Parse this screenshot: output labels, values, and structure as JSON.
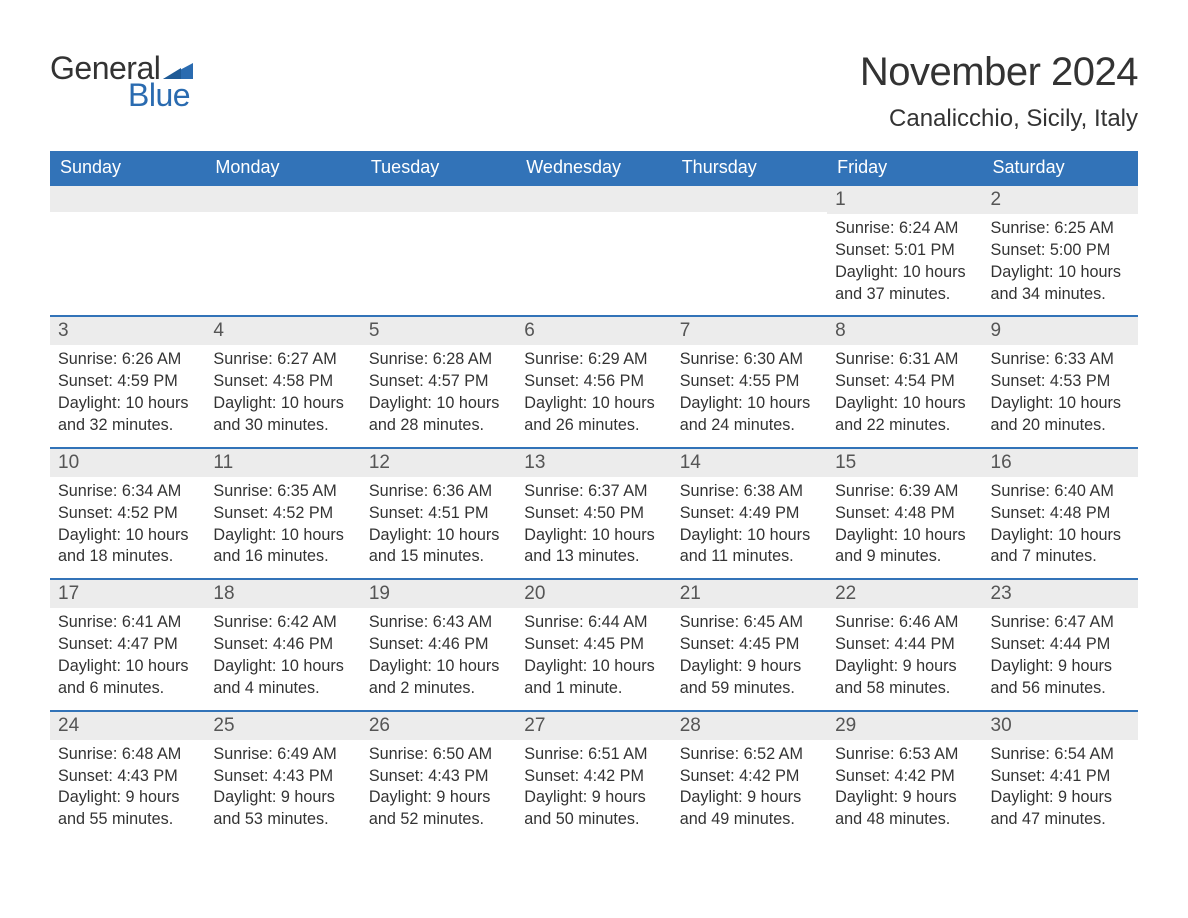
{
  "logo": {
    "word1": "General",
    "word2": "Blue"
  },
  "title": "November 2024",
  "location": "Canalicchio, Sicily, Italy",
  "colors": {
    "header_bg": "#3273b8",
    "header_text": "#ffffff",
    "daynum_bg": "#ececec",
    "daynum_border": "#3273b8",
    "text": "#333333",
    "logo_blue": "#2a6bb0"
  },
  "day_headers": [
    "Sunday",
    "Monday",
    "Tuesday",
    "Wednesday",
    "Thursday",
    "Friday",
    "Saturday"
  ],
  "weeks": [
    [
      {
        "empty": true
      },
      {
        "empty": true
      },
      {
        "empty": true
      },
      {
        "empty": true
      },
      {
        "empty": true
      },
      {
        "day": "1",
        "sunrise": "Sunrise: 6:24 AM",
        "sunset": "Sunset: 5:01 PM",
        "daylight1": "Daylight: 10 hours",
        "daylight2": "and 37 minutes."
      },
      {
        "day": "2",
        "sunrise": "Sunrise: 6:25 AM",
        "sunset": "Sunset: 5:00 PM",
        "daylight1": "Daylight: 10 hours",
        "daylight2": "and 34 minutes."
      }
    ],
    [
      {
        "day": "3",
        "sunrise": "Sunrise: 6:26 AM",
        "sunset": "Sunset: 4:59 PM",
        "daylight1": "Daylight: 10 hours",
        "daylight2": "and 32 minutes."
      },
      {
        "day": "4",
        "sunrise": "Sunrise: 6:27 AM",
        "sunset": "Sunset: 4:58 PM",
        "daylight1": "Daylight: 10 hours",
        "daylight2": "and 30 minutes."
      },
      {
        "day": "5",
        "sunrise": "Sunrise: 6:28 AM",
        "sunset": "Sunset: 4:57 PM",
        "daylight1": "Daylight: 10 hours",
        "daylight2": "and 28 minutes."
      },
      {
        "day": "6",
        "sunrise": "Sunrise: 6:29 AM",
        "sunset": "Sunset: 4:56 PM",
        "daylight1": "Daylight: 10 hours",
        "daylight2": "and 26 minutes."
      },
      {
        "day": "7",
        "sunrise": "Sunrise: 6:30 AM",
        "sunset": "Sunset: 4:55 PM",
        "daylight1": "Daylight: 10 hours",
        "daylight2": "and 24 minutes."
      },
      {
        "day": "8",
        "sunrise": "Sunrise: 6:31 AM",
        "sunset": "Sunset: 4:54 PM",
        "daylight1": "Daylight: 10 hours",
        "daylight2": "and 22 minutes."
      },
      {
        "day": "9",
        "sunrise": "Sunrise: 6:33 AM",
        "sunset": "Sunset: 4:53 PM",
        "daylight1": "Daylight: 10 hours",
        "daylight2": "and 20 minutes."
      }
    ],
    [
      {
        "day": "10",
        "sunrise": "Sunrise: 6:34 AM",
        "sunset": "Sunset: 4:52 PM",
        "daylight1": "Daylight: 10 hours",
        "daylight2": "and 18 minutes."
      },
      {
        "day": "11",
        "sunrise": "Sunrise: 6:35 AM",
        "sunset": "Sunset: 4:52 PM",
        "daylight1": "Daylight: 10 hours",
        "daylight2": "and 16 minutes."
      },
      {
        "day": "12",
        "sunrise": "Sunrise: 6:36 AM",
        "sunset": "Sunset: 4:51 PM",
        "daylight1": "Daylight: 10 hours",
        "daylight2": "and 15 minutes."
      },
      {
        "day": "13",
        "sunrise": "Sunrise: 6:37 AM",
        "sunset": "Sunset: 4:50 PM",
        "daylight1": "Daylight: 10 hours",
        "daylight2": "and 13 minutes."
      },
      {
        "day": "14",
        "sunrise": "Sunrise: 6:38 AM",
        "sunset": "Sunset: 4:49 PM",
        "daylight1": "Daylight: 10 hours",
        "daylight2": "and 11 minutes."
      },
      {
        "day": "15",
        "sunrise": "Sunrise: 6:39 AM",
        "sunset": "Sunset: 4:48 PM",
        "daylight1": "Daylight: 10 hours",
        "daylight2": "and 9 minutes."
      },
      {
        "day": "16",
        "sunrise": "Sunrise: 6:40 AM",
        "sunset": "Sunset: 4:48 PM",
        "daylight1": "Daylight: 10 hours",
        "daylight2": "and 7 minutes."
      }
    ],
    [
      {
        "day": "17",
        "sunrise": "Sunrise: 6:41 AM",
        "sunset": "Sunset: 4:47 PM",
        "daylight1": "Daylight: 10 hours",
        "daylight2": "and 6 minutes."
      },
      {
        "day": "18",
        "sunrise": "Sunrise: 6:42 AM",
        "sunset": "Sunset: 4:46 PM",
        "daylight1": "Daylight: 10 hours",
        "daylight2": "and 4 minutes."
      },
      {
        "day": "19",
        "sunrise": "Sunrise: 6:43 AM",
        "sunset": "Sunset: 4:46 PM",
        "daylight1": "Daylight: 10 hours",
        "daylight2": "and 2 minutes."
      },
      {
        "day": "20",
        "sunrise": "Sunrise: 6:44 AM",
        "sunset": "Sunset: 4:45 PM",
        "daylight1": "Daylight: 10 hours",
        "daylight2": "and 1 minute."
      },
      {
        "day": "21",
        "sunrise": "Sunrise: 6:45 AM",
        "sunset": "Sunset: 4:45 PM",
        "daylight1": "Daylight: 9 hours",
        "daylight2": "and 59 minutes."
      },
      {
        "day": "22",
        "sunrise": "Sunrise: 6:46 AM",
        "sunset": "Sunset: 4:44 PM",
        "daylight1": "Daylight: 9 hours",
        "daylight2": "and 58 minutes."
      },
      {
        "day": "23",
        "sunrise": "Sunrise: 6:47 AM",
        "sunset": "Sunset: 4:44 PM",
        "daylight1": "Daylight: 9 hours",
        "daylight2": "and 56 minutes."
      }
    ],
    [
      {
        "day": "24",
        "sunrise": "Sunrise: 6:48 AM",
        "sunset": "Sunset: 4:43 PM",
        "daylight1": "Daylight: 9 hours",
        "daylight2": "and 55 minutes."
      },
      {
        "day": "25",
        "sunrise": "Sunrise: 6:49 AM",
        "sunset": "Sunset: 4:43 PM",
        "daylight1": "Daylight: 9 hours",
        "daylight2": "and 53 minutes."
      },
      {
        "day": "26",
        "sunrise": "Sunrise: 6:50 AM",
        "sunset": "Sunset: 4:43 PM",
        "daylight1": "Daylight: 9 hours",
        "daylight2": "and 52 minutes."
      },
      {
        "day": "27",
        "sunrise": "Sunrise: 6:51 AM",
        "sunset": "Sunset: 4:42 PM",
        "daylight1": "Daylight: 9 hours",
        "daylight2": "and 50 minutes."
      },
      {
        "day": "28",
        "sunrise": "Sunrise: 6:52 AM",
        "sunset": "Sunset: 4:42 PM",
        "daylight1": "Daylight: 9 hours",
        "daylight2": "and 49 minutes."
      },
      {
        "day": "29",
        "sunrise": "Sunrise: 6:53 AM",
        "sunset": "Sunset: 4:42 PM",
        "daylight1": "Daylight: 9 hours",
        "daylight2": "and 48 minutes."
      },
      {
        "day": "30",
        "sunrise": "Sunrise: 6:54 AM",
        "sunset": "Sunset: 4:41 PM",
        "daylight1": "Daylight: 9 hours",
        "daylight2": "and 47 minutes."
      }
    ]
  ]
}
